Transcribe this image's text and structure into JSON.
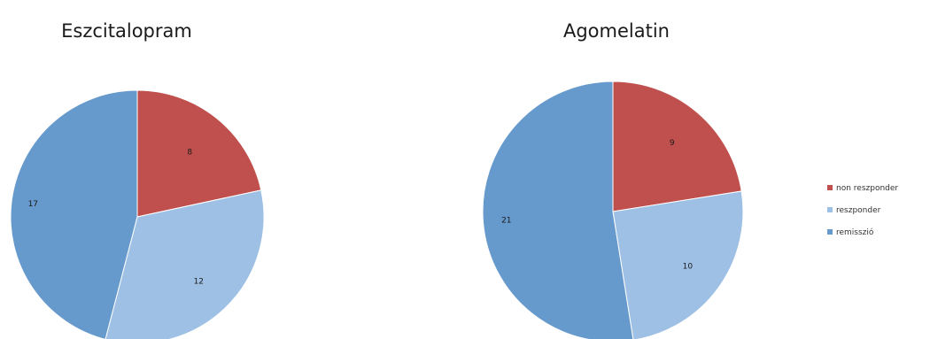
{
  "chart_data": [
    {
      "type": "pie",
      "title": "Eszcitalopram",
      "categories": [
        "non reszponder",
        "reszponder",
        "remisszió"
      ],
      "values": [
        8,
        12,
        17
      ]
    },
    {
      "type": "pie",
      "title": "Agomelatin",
      "categories": [
        "non reszponder",
        "reszponder",
        "remisszió"
      ],
      "values": [
        9,
        10,
        21
      ]
    }
  ],
  "legend": {
    "items": [
      {
        "label": "non reszponder",
        "color": "#c0504d"
      },
      {
        "label": "reszponder",
        "color": "#9fc0e5"
      },
      {
        "label": "remisszió",
        "color": "#6699cc"
      }
    ]
  }
}
